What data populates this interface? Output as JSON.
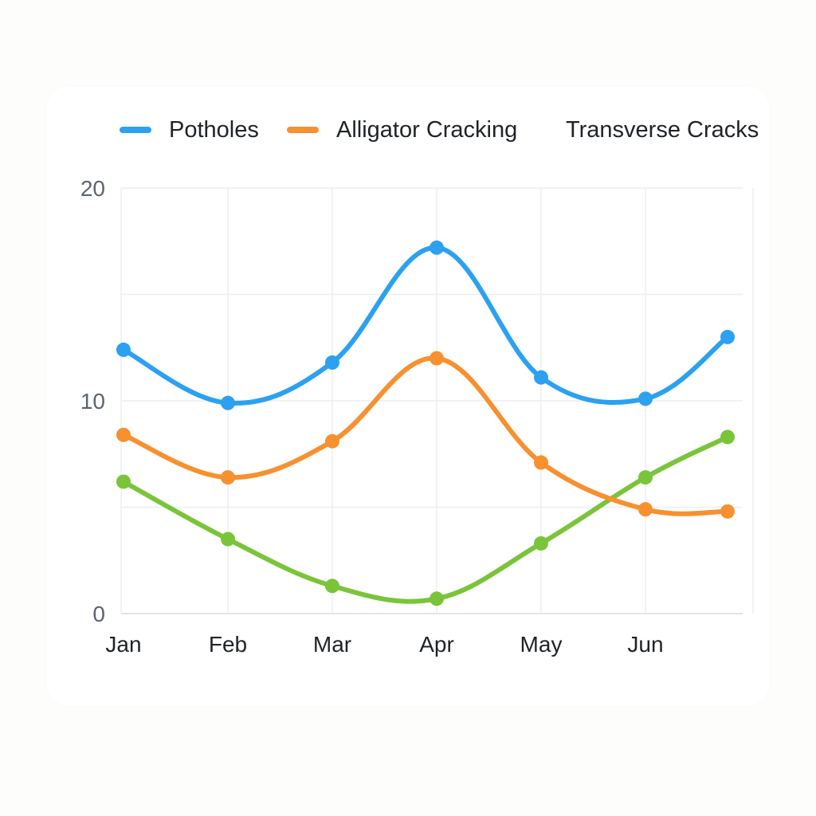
{
  "chart_data": {
    "type": "line",
    "title": "",
    "xlabel": "",
    "ylabel": "",
    "categories": [
      "Jan",
      "Feb",
      "Mar",
      "Apr",
      "May",
      "Jun",
      ""
    ],
    "ylim": [
      0,
      20
    ],
    "yticks": [
      0,
      10,
      20
    ],
    "grid": true,
    "legend_position": "top",
    "series": [
      {
        "name": "Potholes",
        "color": "#2ba1f0",
        "values": [
          12.4,
          9.9,
          11.8,
          17.2,
          11.1,
          10.1,
          13.0
        ]
      },
      {
        "name": "Alligator Cracking",
        "color": "#f7902f",
        "values": [
          8.4,
          6.4,
          8.1,
          12.0,
          7.1,
          4.9,
          4.8
        ]
      },
      {
        "name": "Transverse Cracks",
        "color": "#7ac43a",
        "show_legend_swatch": false,
        "values": [
          6.2,
          3.5,
          1.3,
          0.7,
          3.3,
          6.4,
          8.3
        ]
      }
    ]
  }
}
